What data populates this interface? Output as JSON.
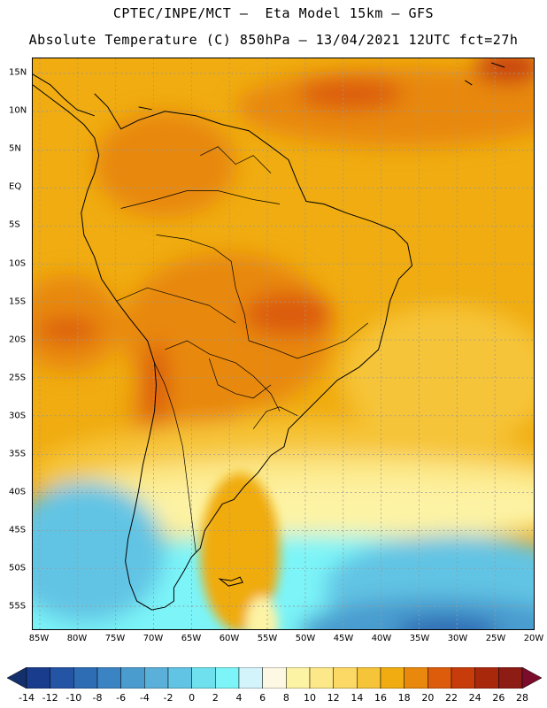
{
  "header": {
    "line1": "CPTEC/INPE/MCT –  Eta Model 15km – GFS",
    "line2": "Absolute Temperature (C) 850hPa – 13/04/2021 12UTC fct=27h"
  },
  "map": {
    "lat_labels": [
      "15N",
      "10N",
      "5N",
      "EQ",
      "5S",
      "10S",
      "15S",
      "20S",
      "25S",
      "30S",
      "35S",
      "40S",
      "45S",
      "50S",
      "55S"
    ],
    "lon_labels": [
      "85W",
      "80W",
      "75W",
      "70W",
      "65W",
      "60W",
      "55W",
      "50W",
      "45W",
      "40W",
      "35W",
      "30W",
      "25W",
      "20W"
    ],
    "gridline_color": "#999999",
    "coastline_color": "#000000"
  },
  "colorbar": {
    "levels": [
      "-14",
      "-12",
      "-10",
      "-8",
      "-6",
      "-4",
      "-2",
      "0",
      "2",
      "4",
      "6",
      "8",
      "10",
      "12",
      "14",
      "16",
      "18",
      "20",
      "22",
      "24",
      "26",
      "28"
    ],
    "colors": [
      "#1a3c8c",
      "#2454a4",
      "#2e6cb4",
      "#3a84c4",
      "#4a9ccf",
      "#5ab0d8",
      "#62c4e4",
      "#6ee0ee",
      "#7cf4f8",
      "#d4f4fc",
      "#fdf8e4",
      "#fdf3a4",
      "#fce888",
      "#fcd864",
      "#f6c438",
      "#f0ac10",
      "#e8880c",
      "#dc5c0c",
      "#c83c0c",
      "#a8280c",
      "#8c1c14",
      "#7c0c2c"
    ],
    "underflow_color": "#14306c",
    "overflow_color": "#7c0c2c"
  }
}
